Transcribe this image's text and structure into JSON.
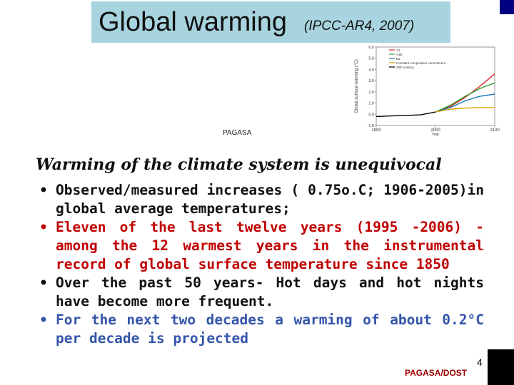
{
  "slide": {
    "title": "Global warming",
    "title_source": "(IPCC-AR4, 2007)",
    "figure_credit": "PAGASA",
    "subtitle": "Warming of the climate system is unequivocal",
    "bullets": [
      {
        "text": "Observed/measured increases ( 0.75o.C; 1906-2005)in global average temperatures;",
        "color": "#111111"
      },
      {
        "text": "Eleven of the last twelve years (1995 -2006) - among the 12 warmest years in the instrumental record of global surface temperature since 1850",
        "color": "#c00000"
      },
      {
        "text": "Over the past 50 years- Hot days and hot nights have become more frequent.",
        "color": "#111111"
      },
      {
        "text": "For the next two decades a warming of about 0.2°C per decade is projected",
        "color": "#3355aa"
      }
    ],
    "page_number": "4",
    "footer": "PAGASA/DOST",
    "accent_colors": {
      "title_box": "#a8d4e0",
      "corner": "#000080"
    }
  },
  "chart_data": {
    "type": "line",
    "ylabel": "Global surface warming (°C)",
    "xlabel": "Year",
    "yticks": [
      "6.0",
      "5.0",
      "4.0",
      "3.0",
      "2.0",
      "1.0",
      "0.0",
      "-1.0"
    ],
    "xticks": [
      "1900",
      "2000",
      "2100"
    ],
    "ylim": [
      -1,
      6
    ],
    "xlim": [
      1900,
      2100
    ],
    "legend": [
      "A2",
      "A1B",
      "B1",
      "Constant composition commitment",
      "20th century"
    ],
    "series": [
      {
        "name": "A2",
        "color": "#d62728",
        "x": [
          2000,
          2025,
          2050,
          2075,
          2100
        ],
        "y": [
          0.2,
          0.7,
          1.5,
          2.5,
          3.6
        ]
      },
      {
        "name": "A1B",
        "color": "#2ca02c",
        "x": [
          2000,
          2025,
          2050,
          2075,
          2100
        ],
        "y": [
          0.2,
          0.8,
          1.6,
          2.3,
          2.8
        ]
      },
      {
        "name": "B1",
        "color": "#1f77b4",
        "x": [
          2000,
          2025,
          2050,
          2075,
          2100
        ],
        "y": [
          0.2,
          0.6,
          1.2,
          1.6,
          1.8
        ]
      },
      {
        "name": "Constant composition commitment",
        "color": "#e0a000",
        "x": [
          2000,
          2025,
          2050,
          2075,
          2100
        ],
        "y": [
          0.2,
          0.45,
          0.55,
          0.6,
          0.6
        ]
      },
      {
        "name": "20th century",
        "color": "#000000",
        "x": [
          1900,
          1925,
          1950,
          1975,
          2000
        ],
        "y": [
          -0.2,
          -0.15,
          -0.1,
          -0.05,
          0.2
        ]
      }
    ]
  }
}
